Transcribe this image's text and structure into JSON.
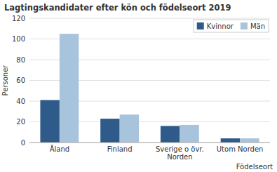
{
  "chart_data": {
    "type": "bar",
    "title": "Lagtingskandidater efter kön och födelseort 2019",
    "ylabel": "Personer",
    "xlabel": "Födelseort",
    "categories": [
      "Åland",
      "Finland",
      "Sverige o övr.\nNorden",
      "Utom Norden"
    ],
    "series": [
      {
        "name": "Kvinnor",
        "color": "#2E5B8A",
        "values": [
          41,
          23,
          16,
          4
        ]
      },
      {
        "name": "Män",
        "color": "#A8C4DC",
        "values": [
          105,
          27,
          17,
          4
        ]
      }
    ],
    "ylim": [
      0,
      120
    ],
    "yticks": [
      0,
      20,
      40,
      60,
      80,
      100,
      120
    ],
    "grid": true,
    "legend": "upper right"
  }
}
